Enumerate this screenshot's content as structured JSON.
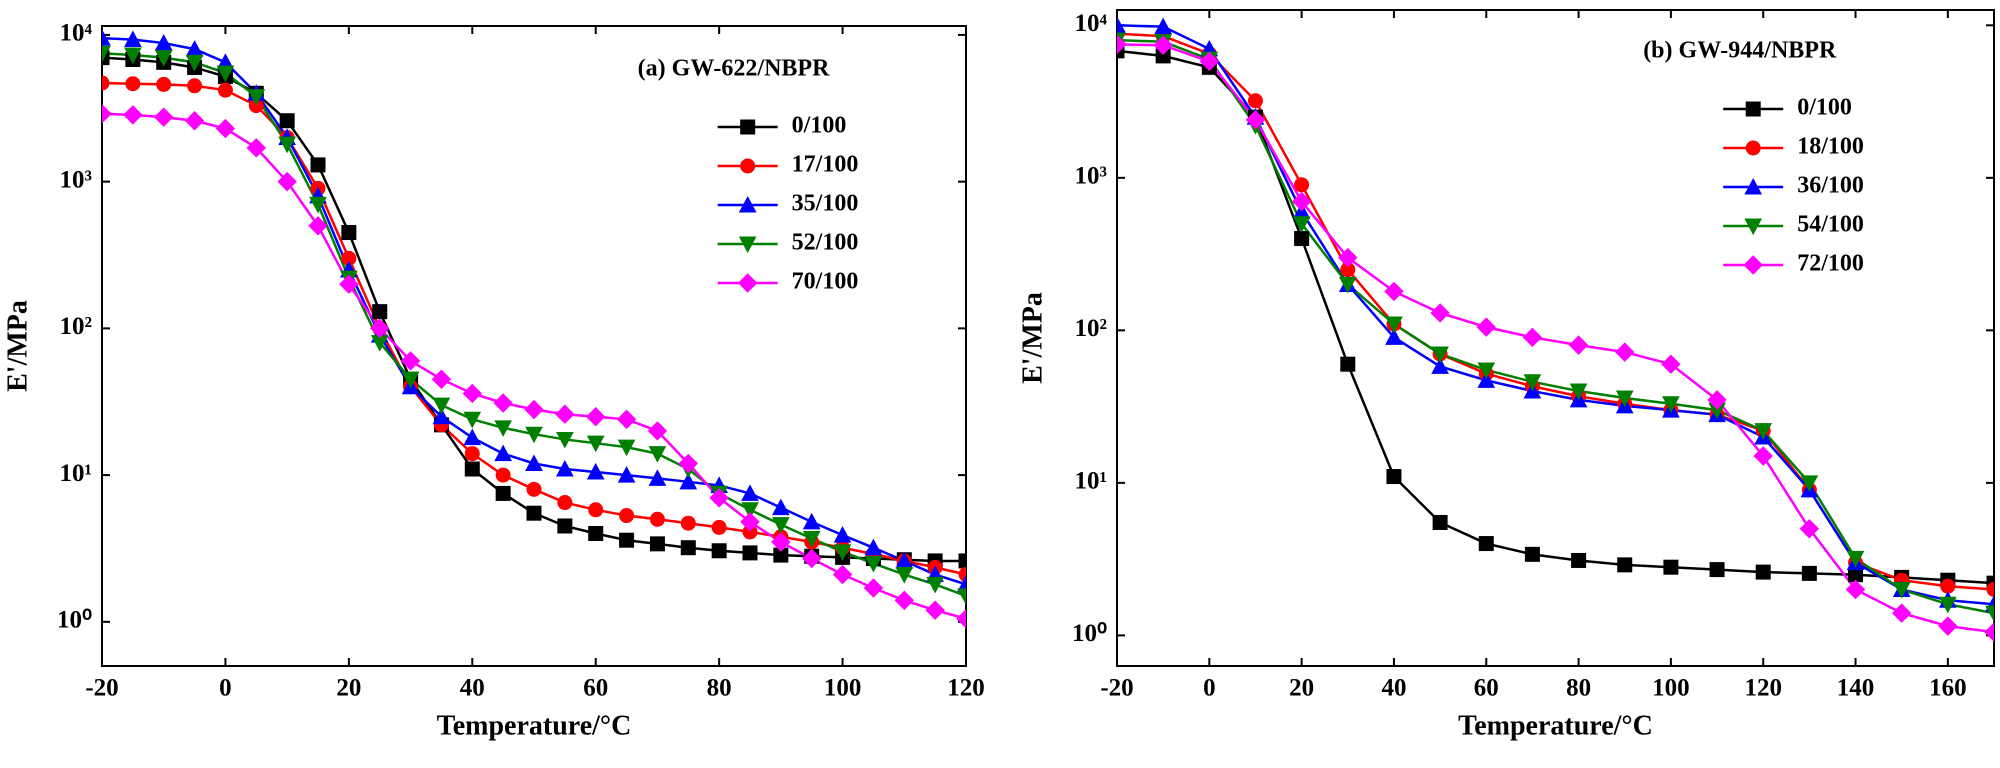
{
  "chart_data": [
    {
      "type": "line",
      "annotation": "(a) GW-622/NBPR",
      "x_label": "Temperature/°C",
      "y_label": "E'/MPa",
      "log_y": true,
      "xlim": [
        -20,
        120
      ],
      "ylim": [
        0.5,
        11500
      ],
      "xticks": [
        -20,
        0,
        20,
        40,
        60,
        80,
        100,
        120
      ],
      "yticks": [
        {
          "value": 1,
          "label": "10⁰"
        },
        {
          "value": 10,
          "label": "10¹"
        },
        {
          "value": 100,
          "label": "10²"
        },
        {
          "value": 1000,
          "label": "10³"
        },
        {
          "value": 10000,
          "label": "10⁴"
        }
      ],
      "x": [
        -20,
        -15,
        -10,
        -5,
        0,
        5,
        10,
        15,
        20,
        25,
        30,
        35,
        40,
        45,
        50,
        55,
        60,
        65,
        70,
        75,
        80,
        85,
        90,
        95,
        100,
        105,
        110,
        115,
        120
      ],
      "series": [
        {
          "name": "0/100",
          "color": "#000000",
          "marker": "square",
          "values": [
            7000,
            6800,
            6500,
            6000,
            5200,
            4000,
            2600,
            1300,
            450,
            130,
            45,
            22,
            11,
            7.5,
            5.5,
            4.5,
            4,
            3.6,
            3.4,
            3.2,
            3.05,
            2.95,
            2.85,
            2.8,
            2.75,
            2.7,
            2.65,
            2.6,
            2.6
          ]
        },
        {
          "name": "17/100",
          "color": "#ff0000",
          "marker": "circle",
          "values": [
            4700,
            4650,
            4600,
            4500,
            4200,
            3300,
            2000,
            900,
            300,
            100,
            40,
            22,
            14,
            10,
            8,
            6.5,
            5.8,
            5.3,
            5,
            4.7,
            4.4,
            4.1,
            3.8,
            3.5,
            3.2,
            2.9,
            2.6,
            2.35,
            2.1
          ]
        },
        {
          "name": "35/100",
          "color": "#0000ff",
          "marker": "triangle-up",
          "values": [
            9500,
            9300,
            8800,
            8000,
            6500,
            4000,
            2000,
            800,
            250,
            90,
            40,
            25,
            18,
            14,
            12,
            11,
            10.5,
            10,
            9.5,
            9,
            8.5,
            7.5,
            6,
            4.8,
            3.9,
            3.2,
            2.6,
            2.1,
            1.8
          ]
        },
        {
          "name": "52/100",
          "color": "#008000",
          "marker": "triangle-down",
          "values": [
            7500,
            7300,
            7000,
            6500,
            5500,
            3800,
            1800,
            700,
            220,
            80,
            45,
            30,
            24,
            21,
            19,
            17.5,
            16.5,
            15.5,
            14,
            11,
            7.5,
            5.8,
            4.6,
            3.7,
            3.0,
            2.5,
            2.1,
            1.8,
            1.5
          ]
        },
        {
          "name": "70/100",
          "color": "#ff00ff",
          "marker": "diamond",
          "values": [
            2900,
            2850,
            2750,
            2600,
            2300,
            1700,
            1000,
            500,
            200,
            100,
            60,
            45,
            36,
            31,
            28,
            26,
            25,
            24,
            20,
            12,
            7,
            4.8,
            3.5,
            2.7,
            2.1,
            1.7,
            1.4,
            1.2,
            1.05
          ]
        }
      ]
    },
    {
      "type": "line",
      "annotation": "(b) GW-944/NBPR",
      "x_label": "Temperature/°C",
      "y_label": "E'/MPa",
      "log_y": true,
      "xlim": [
        -20,
        170
      ],
      "ylim": [
        0.63,
        12600
      ],
      "xticks": [
        -20,
        0,
        20,
        40,
        60,
        80,
        100,
        120,
        140,
        160
      ],
      "yticks": [
        {
          "value": 1,
          "label": "10⁰"
        },
        {
          "value": 10,
          "label": "10¹"
        },
        {
          "value": 100,
          "label": "10²"
        },
        {
          "value": 1000,
          "label": "10³"
        },
        {
          "value": 10000,
          "label": "10⁴"
        }
      ],
      "x": [
        -20,
        -10,
        0,
        10,
        20,
        30,
        40,
        50,
        60,
        70,
        80,
        90,
        100,
        110,
        120,
        130,
        140,
        150,
        160,
        170
      ],
      "series": [
        {
          "name": "0/100",
          "color": "#000000",
          "marker": "square",
          "values": [
            6800,
            6300,
            5300,
            2500,
            400,
            60,
            11,
            5.5,
            4,
            3.4,
            3.1,
            2.9,
            2.8,
            2.7,
            2.6,
            2.55,
            2.5,
            2.4,
            2.3,
            2.2
          ]
        },
        {
          "name": "18/100",
          "color": "#ff0000",
          "marker": "circle",
          "values": [
            8800,
            8500,
            6500,
            3200,
            900,
            250,
            110,
            70,
            52,
            43,
            37,
            33,
            30,
            28,
            22,
            9,
            3,
            2.3,
            2.1,
            2.0
          ]
        },
        {
          "name": "36/100",
          "color": "#0000ff",
          "marker": "triangle-up",
          "values": [
            10000,
            9800,
            7000,
            2500,
            600,
            200,
            90,
            58,
            47,
            40,
            35,
            32,
            30,
            28,
            20,
            9,
            3,
            2,
            1.7,
            1.6
          ]
        },
        {
          "name": "54/100",
          "color": "#008000",
          "marker": "triangle-down",
          "values": [
            8000,
            7800,
            6000,
            2200,
            500,
            200,
            110,
            70,
            55,
            46,
            40,
            36,
            33,
            30,
            22,
            10,
            3.2,
            2,
            1.6,
            1.4
          ]
        },
        {
          "name": "72/100",
          "color": "#ff00ff",
          "marker": "diamond",
          "values": [
            7500,
            7400,
            5800,
            2400,
            700,
            300,
            180,
            130,
            105,
            90,
            80,
            72,
            60,
            35,
            15,
            5,
            2,
            1.4,
            1.15,
            1.05
          ]
        }
      ]
    }
  ]
}
